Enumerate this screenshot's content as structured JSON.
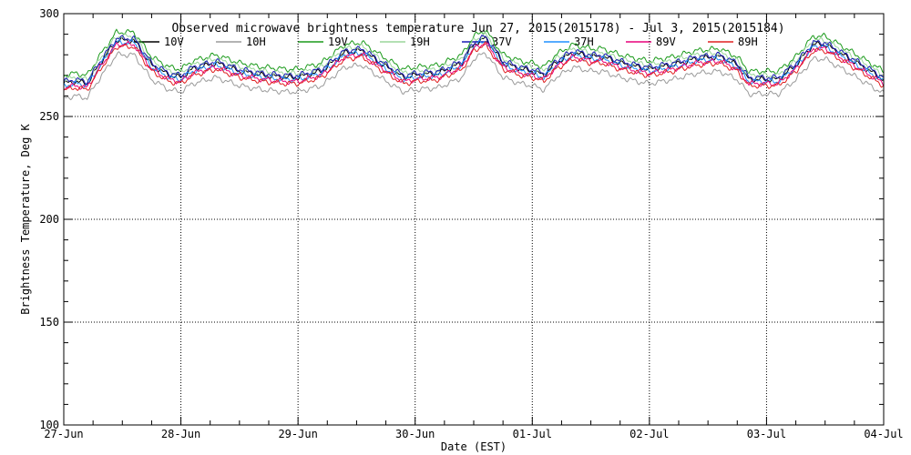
{
  "chart_data": {
    "type": "line",
    "title": "Observed microwave brightness temperature Jun 27, 2015(2015178) - Jul  3, 2015(2015184)",
    "xlabel": "Date (EST)",
    "ylabel": "Brightness Temperature, Deg K",
    "x_unit": "days",
    "xlim": [
      0,
      7
    ],
    "ylim": [
      100,
      300
    ],
    "x_ticks": [
      {
        "label": "27-Jun",
        "value": 0
      },
      {
        "label": "28-Jun",
        "value": 1
      },
      {
        "label": "29-Jun",
        "value": 2
      },
      {
        "label": "30-Jun",
        "value": 3
      },
      {
        "label": "01-Jul",
        "value": 4
      },
      {
        "label": "02-Jul",
        "value": 5
      },
      {
        "label": "03-Jul",
        "value": 6
      },
      {
        "label": "04-Jul",
        "value": 7
      }
    ],
    "y_ticks": [
      100,
      150,
      200,
      250,
      300
    ],
    "grid": true,
    "legend_position": "top",
    "base_curve": {
      "x": [
        0,
        0.1,
        0.2,
        0.3,
        0.45,
        0.6,
        0.75,
        0.9,
        1.0,
        1.1,
        1.3,
        1.5,
        1.7,
        1.9,
        2.0,
        2.2,
        2.4,
        2.55,
        2.7,
        2.9,
        3.0,
        3.2,
        3.4,
        3.5,
        3.6,
        3.75,
        3.9,
        4.0,
        4.1,
        4.2,
        4.35,
        4.5,
        4.6,
        4.75,
        4.9,
        5.0,
        5.2,
        5.4,
        5.6,
        5.75,
        5.85,
        6.0,
        6.1,
        6.25,
        6.4,
        6.5,
        6.65,
        6.8,
        7.0
      ],
      "y": [
        266,
        267,
        266,
        275,
        287,
        287,
        275,
        270,
        269,
        273,
        276,
        272,
        270,
        269,
        269,
        272,
        281,
        282,
        276,
        269,
        270,
        271,
        276,
        285,
        288,
        276,
        273,
        272,
        270,
        276,
        281,
        279,
        279,
        276,
        274,
        273,
        275,
        278,
        279,
        275,
        268,
        268,
        268,
        275,
        285,
        285,
        280,
        275,
        268
      ]
    },
    "series": [
      {
        "name": "10V",
        "color": "#000000",
        "offset": 0
      },
      {
        "name": "10H",
        "color": "#9a9a9a",
        "offset": -7
      },
      {
        "name": "19V",
        "color": "#1a9a1a",
        "offset": 4
      },
      {
        "name": "19H",
        "color": "#9ad69a",
        "offset": 2
      },
      {
        "name": "37V",
        "color": "#1a1ab4",
        "offset": 1
      },
      {
        "name": "37H",
        "color": "#1e90ff",
        "offset": -1
      },
      {
        "name": "89V",
        "color": "#e8007a",
        "offset": -2
      },
      {
        "name": "89H",
        "color": "#e02020",
        "offset": -3
      }
    ]
  }
}
